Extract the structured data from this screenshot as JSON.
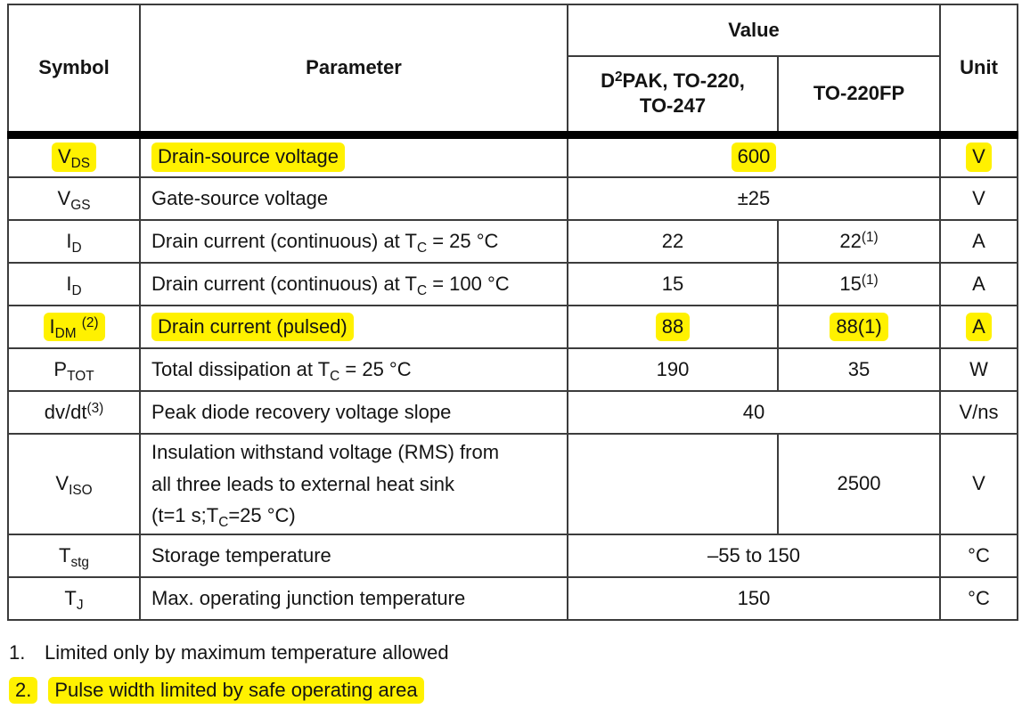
{
  "colors": {
    "highlight": "#fff100",
    "grid_line": "#3c3c3c",
    "thick_rule": "#000000",
    "text": "#141414",
    "background": "#ffffff"
  },
  "table": {
    "header": {
      "symbol": "Symbol",
      "parameter": "Parameter",
      "value": "Value",
      "value_sub_1": "D^2^PAK, TO-220,\nTO-247",
      "value_sub_2": "TO-220FP",
      "unit": "Unit"
    },
    "rows": [
      {
        "symbol": "V~DS~",
        "parameter": "Drain-source voltage",
        "values": [
          {
            "text": "600",
            "span": 2
          }
        ],
        "unit": "V",
        "highlight": true,
        "tall": false
      },
      {
        "symbol": "V~GS~",
        "parameter": "Gate-source voltage",
        "values": [
          {
            "text": "±25",
            "span": 2
          }
        ],
        "unit": "V",
        "highlight": false,
        "tall": false
      },
      {
        "symbol": "I~D~",
        "parameter": "Drain current (continuous) at T~C~ = 25 °C",
        "values": [
          {
            "text": "22",
            "span": 1
          },
          {
            "text": "22^(1)^",
            "span": 1
          }
        ],
        "unit": "A",
        "highlight": false,
        "tall": false
      },
      {
        "symbol": "I~D~",
        "parameter": "Drain current (continuous) at T~C~ = 100 °C",
        "values": [
          {
            "text": "15",
            "span": 1
          },
          {
            "text": "15^(1)^",
            "span": 1
          }
        ],
        "unit": "A",
        "highlight": false,
        "tall": false
      },
      {
        "symbol": "I~DM~ ^(2)^",
        "parameter": "Drain current (pulsed)",
        "values": [
          {
            "text": "88",
            "span": 1
          },
          {
            "text": "88(1)",
            "span": 1
          }
        ],
        "unit": "A",
        "highlight": true,
        "tall": false
      },
      {
        "symbol": "P~TOT~",
        "parameter": "Total dissipation at T~C~ = 25 °C",
        "values": [
          {
            "text": "190",
            "span": 1
          },
          {
            "text": "35",
            "span": 1
          }
        ],
        "unit": "W",
        "highlight": false,
        "tall": false
      },
      {
        "symbol": "dv/dt^(3)^",
        "parameter": "Peak diode recovery voltage slope",
        "values": [
          {
            "text": "40",
            "span": 2
          }
        ],
        "unit": "V/ns",
        "highlight": false,
        "tall": false
      },
      {
        "symbol": "V~ISO~",
        "parameter": "Insulation withstand voltage (RMS) from\nall three leads to external heat sink\n(t=1 s;T~C~=25 °C)",
        "values": [
          {
            "text": "",
            "span": 1
          },
          {
            "text": "2500",
            "span": 1
          }
        ],
        "unit": "V",
        "highlight": false,
        "tall": true
      },
      {
        "symbol": "T~stg~",
        "parameter": "Storage temperature",
        "values": [
          {
            "text": "–55 to 150",
            "span": 2
          }
        ],
        "unit": "°C",
        "highlight": false,
        "tall": false
      },
      {
        "symbol": "T~J~",
        "parameter": "Max. operating junction temperature",
        "values": [
          {
            "text": "150",
            "span": 2
          }
        ],
        "unit": "°C",
        "highlight": false,
        "tall": false
      }
    ]
  },
  "footnotes": [
    {
      "number": "1.",
      "text": "Limited only by maximum temperature allowed",
      "highlight": false
    },
    {
      "number": "2.",
      "text": "Pulse width limited by safe operating area",
      "highlight": true
    }
  ]
}
